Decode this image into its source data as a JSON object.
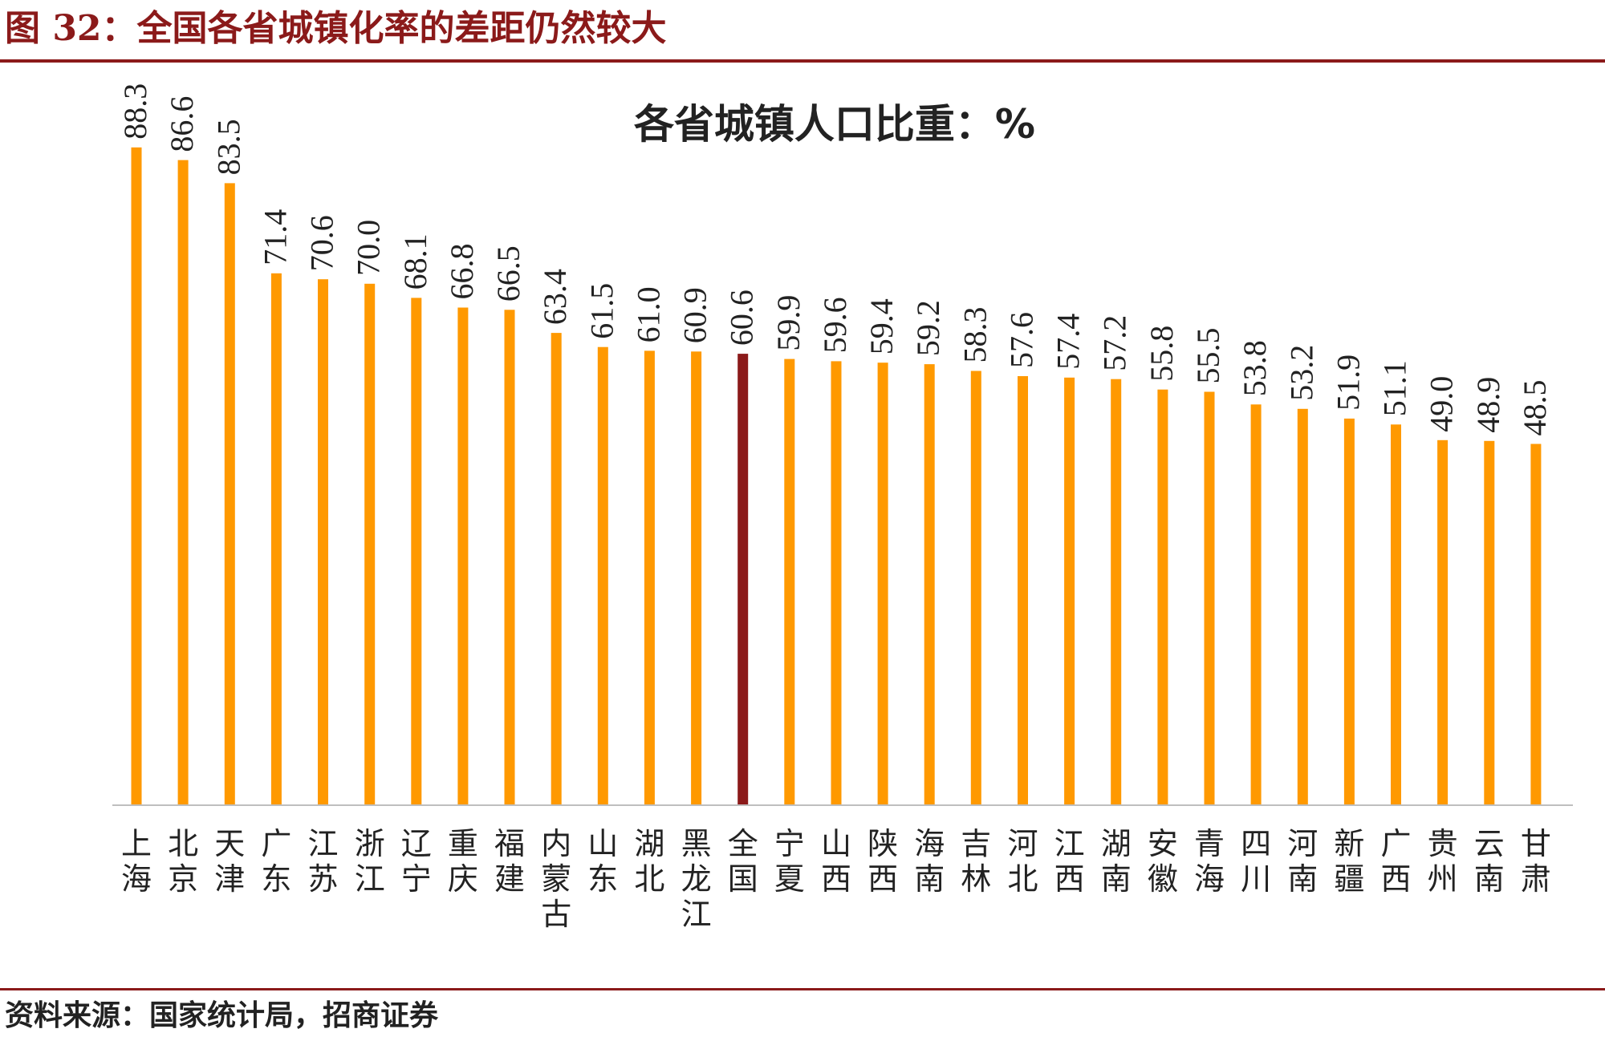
{
  "figure": {
    "title": "图 32：全国各省城镇化率的差距仍然较大",
    "source": "资料来源：国家统计局，招商证券"
  },
  "colors": {
    "bar": "#ff9900",
    "highlight": "#8b1a1a",
    "text": "#222222",
    "axis": "#bfbfbf"
  },
  "chart_data": {
    "type": "bar",
    "title": "各省城镇人口比重：%",
    "xlabel": "",
    "ylabel": "",
    "ylim": [
      0,
      90
    ],
    "grid": false,
    "legend": "none",
    "highlight_category": "全国",
    "categories": [
      "上海",
      "北京",
      "天津",
      "广东",
      "江苏",
      "浙江",
      "辽宁",
      "重庆",
      "福建",
      "内蒙古",
      "山东",
      "湖北",
      "黑龙江",
      "全国",
      "宁夏",
      "山西",
      "陕西",
      "海南",
      "吉林",
      "河北",
      "江西",
      "湖南",
      "安徽",
      "青海",
      "四川",
      "河南",
      "新疆",
      "广西",
      "贵州",
      "云南",
      "甘肃"
    ],
    "values": [
      88.3,
      86.6,
      83.5,
      71.4,
      70.6,
      70.0,
      68.1,
      66.8,
      66.5,
      63.4,
      61.5,
      61.0,
      60.9,
      60.6,
      59.9,
      59.6,
      59.4,
      59.2,
      58.3,
      57.6,
      57.4,
      57.2,
      55.8,
      55.5,
      53.8,
      53.2,
      51.9,
      51.1,
      49.0,
      48.9,
      48.5
    ],
    "value_labels": [
      "88.3",
      "86.6",
      "83.5",
      "71.4",
      "70.6",
      "70.0",
      "68.1",
      "66.8",
      "66.5",
      "63.4",
      "61.5",
      "61.0",
      "60.9",
      "60.6",
      "59.9",
      "59.6",
      "59.4",
      "59.2",
      "58.3",
      "57.6",
      "57.4",
      "57.2",
      "55.8",
      "55.5",
      "53.8",
      "53.2",
      "51.9",
      "51.1",
      "49.0",
      "48.9",
      "48.5"
    ]
  }
}
